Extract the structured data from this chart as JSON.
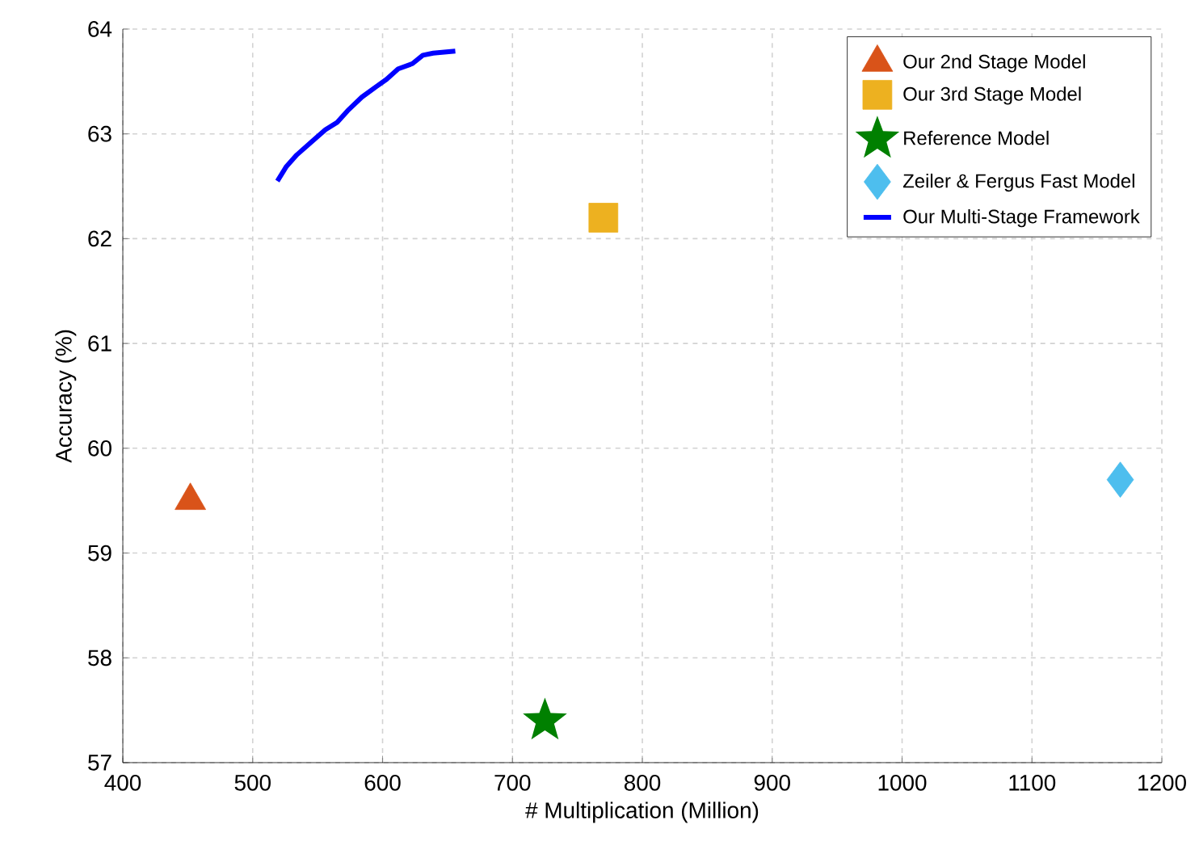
{
  "chart_data": {
    "type": "scatter",
    "xlabel": "# Multiplication (Million)",
    "ylabel": "Accuracy (%)",
    "xlim": [
      400,
      1200
    ],
    "xticks": [
      400,
      500,
      600,
      700,
      800,
      900,
      1000,
      1100,
      1200
    ],
    "ylim": [
      57,
      64
    ],
    "yticks": [
      57,
      58,
      59,
      60,
      61,
      62,
      63,
      64
    ],
    "grid": true,
    "legend": "top right",
    "series": [
      {
        "name": "Our 2nd Stage Model",
        "marker": "triangle",
        "color": "#d95319",
        "x": [
          452
        ],
        "values": [
          59.5
        ]
      },
      {
        "name": "Our 3rd Stage Model",
        "marker": "square",
        "color": "#edb120",
        "x": [
          770
        ],
        "values": [
          62.2
        ]
      },
      {
        "name": "Reference Model",
        "marker": "star",
        "color": "#008000",
        "x": [
          725
        ],
        "values": [
          57.4
        ]
      },
      {
        "name": "Zeiler & Fergus Fast Model",
        "marker": "diamond",
        "color": "#4dbeee",
        "x": [
          1168
        ],
        "values": [
          59.7
        ]
      },
      {
        "name": "Our Multi-Stage Framework",
        "type": "line",
        "marker": "none",
        "line_style": "solid",
        "color": "#0000ff",
        "x": [
          519,
          526,
          534,
          545,
          556,
          565,
          573,
          584,
          595,
          603,
          612,
          623,
          631,
          639,
          656
        ],
        "values": [
          62.55,
          62.69,
          62.8,
          62.92,
          63.04,
          63.11,
          63.22,
          63.35,
          63.45,
          63.52,
          63.62,
          63.67,
          63.75,
          63.77,
          63.79
        ]
      }
    ]
  }
}
